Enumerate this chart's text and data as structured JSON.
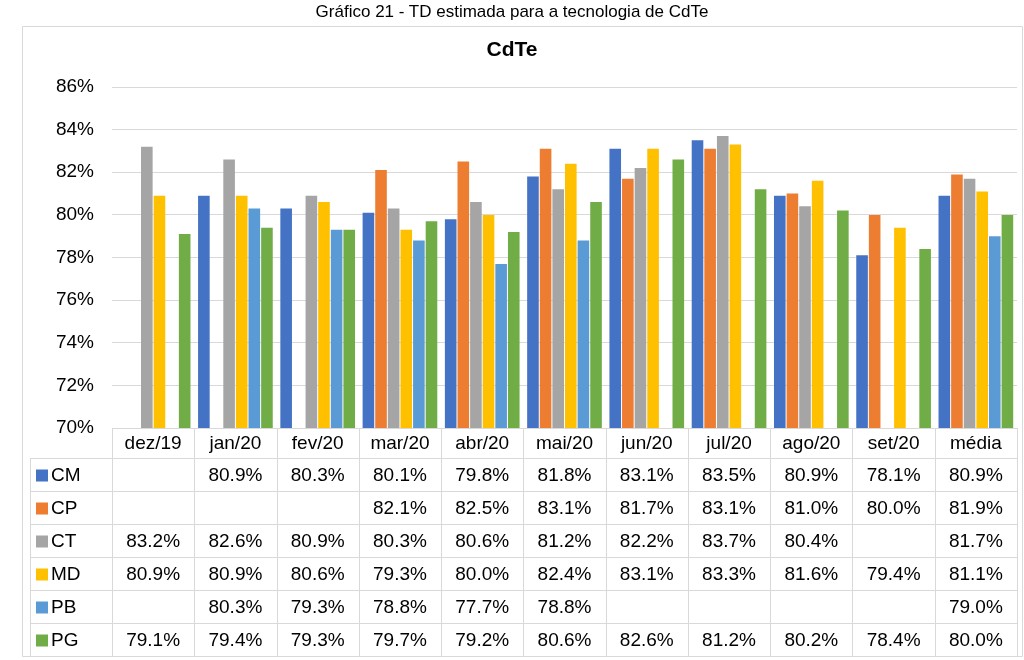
{
  "chart_data": {
    "type": "bar",
    "title": "CdTe",
    "annotations": [
      "Gráfico 21 - TD estimada para a tecnologia de CdTe"
    ],
    "categories": [
      "dez/19",
      "jan/20",
      "fev/20",
      "mar/20",
      "abr/20",
      "mai/20",
      "jun/20",
      "jul/20",
      "ago/20",
      "set/20",
      "média"
    ],
    "series": [
      {
        "name": "CM",
        "color": "#4472c4",
        "values": [
          null,
          80.9,
          80.3,
          80.1,
          79.8,
          81.8,
          83.1,
          83.5,
          80.9,
          78.1,
          80.9
        ],
        "value_labels": [
          null,
          "80.9%",
          "80.3%",
          "80.1%",
          "79.8%",
          "81.8%",
          "83.1%",
          "83.5%",
          "80.9%",
          "78.1%",
          "80.9%"
        ]
      },
      {
        "name": "CP",
        "color": "#ed7d31",
        "values": [
          null,
          null,
          null,
          82.1,
          82.5,
          83.1,
          81.7,
          83.1,
          81.0,
          80.0,
          81.9
        ],
        "value_labels": [
          null,
          null,
          null,
          "82.1%",
          "82.5%",
          "83.1%",
          "81.7%",
          "83.1%",
          "81.0%",
          "80.0%",
          "81.9%"
        ]
      },
      {
        "name": "CT",
        "color": "#a5a5a5",
        "values": [
          83.2,
          82.6,
          80.9,
          80.3,
          80.6,
          81.2,
          82.2,
          83.7,
          80.4,
          null,
          81.7
        ],
        "value_labels": [
          "83.2%",
          "82.6%",
          "80.9%",
          "80.3%",
          "80.6%",
          "81.2%",
          "82.2%",
          "83.7%",
          "80.4%",
          null,
          "81.7%"
        ]
      },
      {
        "name": "MD",
        "color": "#ffc000",
        "values": [
          80.9,
          80.9,
          80.6,
          79.3,
          80.0,
          82.4,
          83.1,
          83.3,
          81.6,
          79.4,
          81.1
        ],
        "value_labels": [
          "80.9%",
          "80.9%",
          "80.6%",
          "79.3%",
          "80.0%",
          "82.4%",
          "83.1%",
          "83.3%",
          "81.6%",
          "79.4%",
          "81.1%"
        ]
      },
      {
        "name": "PB",
        "color": "#5b9bd5",
        "values": [
          null,
          80.3,
          79.3,
          78.8,
          77.7,
          78.8,
          null,
          null,
          null,
          null,
          79.0
        ],
        "value_labels": [
          null,
          "80.3%",
          "79.3%",
          "78.8%",
          "77.7%",
          "78.8%",
          null,
          null,
          null,
          null,
          "79.0%"
        ]
      },
      {
        "name": "PG",
        "color": "#70ad47",
        "values": [
          79.1,
          79.4,
          79.3,
          79.7,
          79.2,
          80.6,
          82.6,
          81.2,
          80.2,
          78.4,
          80.0
        ],
        "value_labels": [
          "79.1%",
          "79.4%",
          "79.3%",
          "79.7%",
          "79.2%",
          "80.6%",
          "82.6%",
          "81.2%",
          "80.2%",
          "78.4%",
          "80.0%"
        ]
      }
    ],
    "ylim": [
      70,
      86
    ],
    "yticks": [
      {
        "value": 70,
        "label": "70%"
      },
      {
        "value": 72,
        "label": "72%"
      },
      {
        "value": 74,
        "label": "74%"
      },
      {
        "value": 76,
        "label": "76%"
      },
      {
        "value": 78,
        "label": "78%"
      },
      {
        "value": 80,
        "label": "80%"
      },
      {
        "value": 82,
        "label": "82%"
      },
      {
        "value": 84,
        "label": "84%"
      },
      {
        "value": 86,
        "label": "86%"
      }
    ],
    "grid": "y",
    "legend": "bottom left"
  }
}
